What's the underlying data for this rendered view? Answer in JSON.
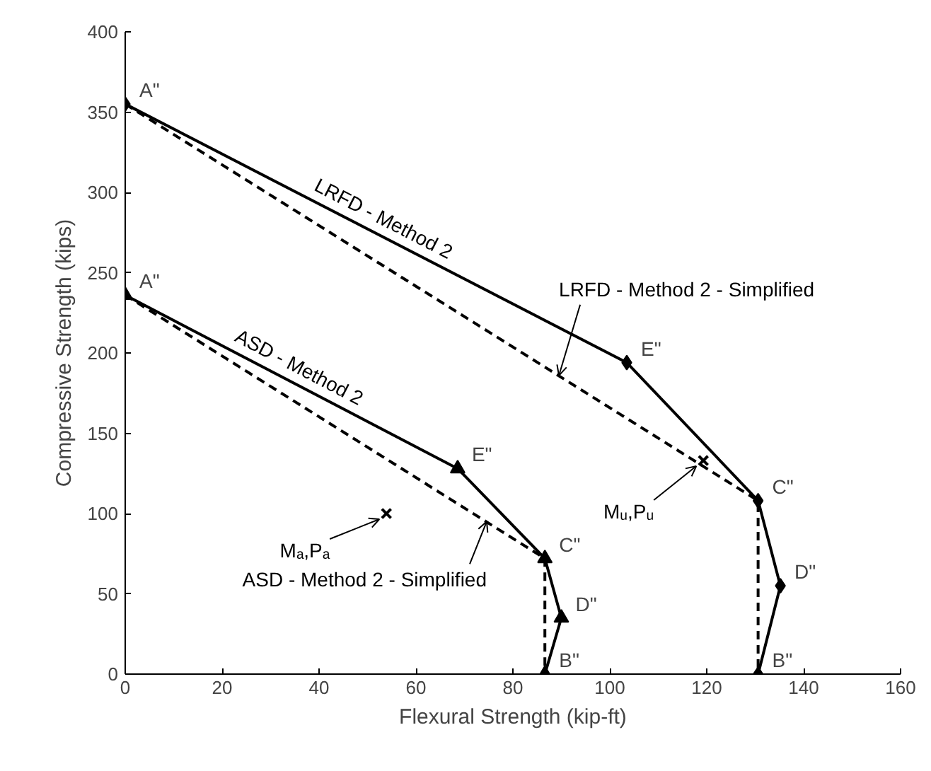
{
  "chart_data": {
    "type": "line",
    "xlabel": "Flexural Strength (kip-ft)",
    "ylabel": "Compressive Strength (kips)",
    "xlim": [
      0,
      160
    ],
    "xticks": [
      0,
      20,
      40,
      60,
      80,
      100,
      120,
      140,
      160
    ],
    "ylim": [
      0,
      400
    ],
    "yticks": [
      0,
      50,
      100,
      150,
      200,
      250,
      300,
      350,
      400
    ],
    "grid": false,
    "series": [
      {
        "name": "LRFD - Method 2",
        "color": "#000000",
        "marker": "diamond",
        "line_style": "solid",
        "x": [
          0,
          103.5,
          130.6,
          135.2,
          130.6
        ],
        "values": [
          355,
          194,
          108,
          55,
          0
        ]
      },
      {
        "color": "#000000",
        "marker": "none",
        "line_style": "dashed",
        "x": [
          0,
          130.6,
          130.6
        ],
        "values": [
          355,
          108,
          0
        ]
      },
      {
        "name": "ASD - Method 2",
        "color": "#000000",
        "marker": "triangle",
        "line_style": "solid",
        "x": [
          0,
          68.6,
          86.6,
          90,
          86.6
        ],
        "values": [
          236,
          128,
          72,
          35,
          0
        ]
      },
      {
        "color": "#000000",
        "marker": "none",
        "line_style": "dashed",
        "x": [
          0,
          86.6,
          86.6
        ],
        "values": [
          236,
          72,
          0
        ]
      },
      {
        "type": "scatter",
        "color": "#000000",
        "marker": "cross",
        "x": [
          119.3
        ],
        "values": [
          133
        ]
      },
      {
        "type": "scatter",
        "color": "#000000",
        "marker": "cross",
        "x": [
          53.9
        ],
        "values": [
          100
        ]
      }
    ],
    "annotations": [
      {
        "text": "A\"",
        "x": 0,
        "y": 355
      },
      {
        "text": "E\"",
        "x": 103.5,
        "y": 194
      },
      {
        "text": "C\"",
        "x": 130.6,
        "y": 108
      },
      {
        "text": "D\"",
        "x": 135.2,
        "y": 55
      },
      {
        "text": "B\"",
        "x": 130.6,
        "y": 0
      },
      {
        "text": "A\"",
        "x": 0,
        "y": 236
      },
      {
        "text": "E\"",
        "x": 68.6,
        "y": 128
      },
      {
        "text": "C\"",
        "x": 86.6,
        "y": 72
      },
      {
        "text": "D\"",
        "x": 90,
        "y": 35
      },
      {
        "text": "B\"",
        "x": 86.6,
        "y": 0
      },
      {
        "text": "LRFD - Method 2 - Simplified",
        "x": 89.5,
        "y": 186
      },
      {
        "text": "ASD - Method 2 - Simplified",
        "x": 74.6,
        "y": 95
      },
      {
        "text": "Mᵤ,Pᵤ",
        "x": 119.3,
        "y": 133
      },
      {
        "text": "Mₐ,Pₐ",
        "x": 53.9,
        "y": 100
      }
    ]
  }
}
